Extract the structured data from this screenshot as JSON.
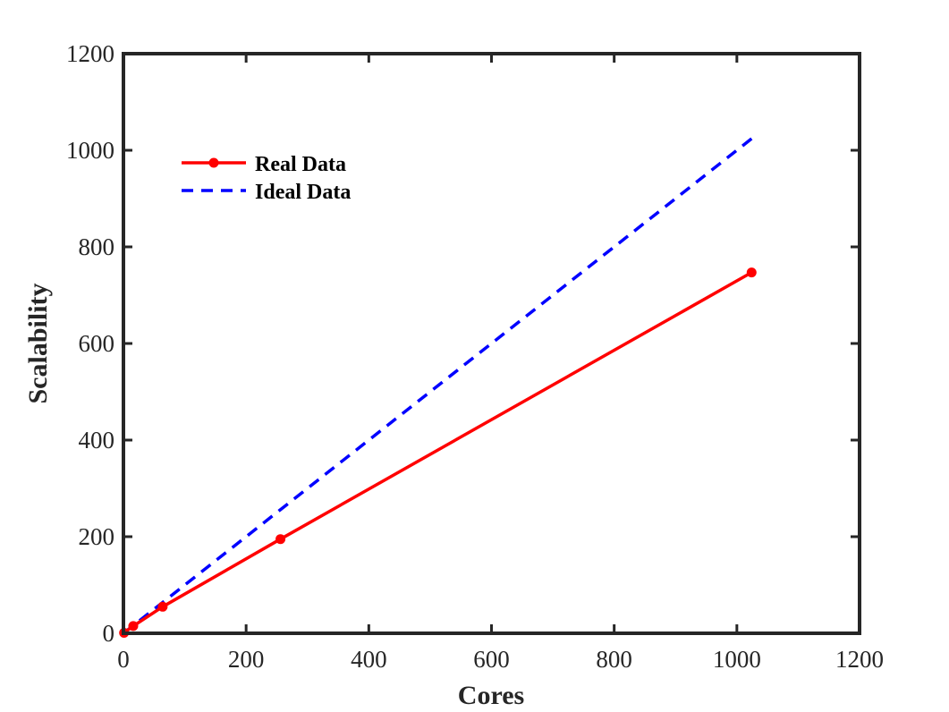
{
  "chart_data": {
    "type": "line",
    "title": "",
    "xlabel": "Cores",
    "ylabel": "Scalability",
    "xlim": [
      0,
      1200
    ],
    "ylim": [
      0,
      1200
    ],
    "xticks": [
      0,
      200,
      400,
      600,
      800,
      1000,
      1200
    ],
    "yticks": [
      0,
      200,
      400,
      600,
      800,
      1000,
      1200
    ],
    "xtick_labels": [
      "0",
      "200",
      "400",
      "600",
      "800",
      "1000",
      "1200"
    ],
    "ytick_labels": [
      "0",
      "200",
      "400",
      "600",
      "800",
      "1000",
      "1200"
    ],
    "grid": false,
    "legend_position": "top-left",
    "series": [
      {
        "name": "Real Data",
        "color": "#ff0000",
        "style": "solid",
        "marker": "circle",
        "x": [
          1,
          16,
          64,
          256,
          1024
        ],
        "y": [
          1,
          15,
          55,
          195,
          747
        ]
      },
      {
        "name": "Ideal Data",
        "color": "#0000ff",
        "style": "dashed",
        "marker": "none",
        "x": [
          1,
          1024
        ],
        "y": [
          1,
          1024
        ]
      }
    ]
  }
}
